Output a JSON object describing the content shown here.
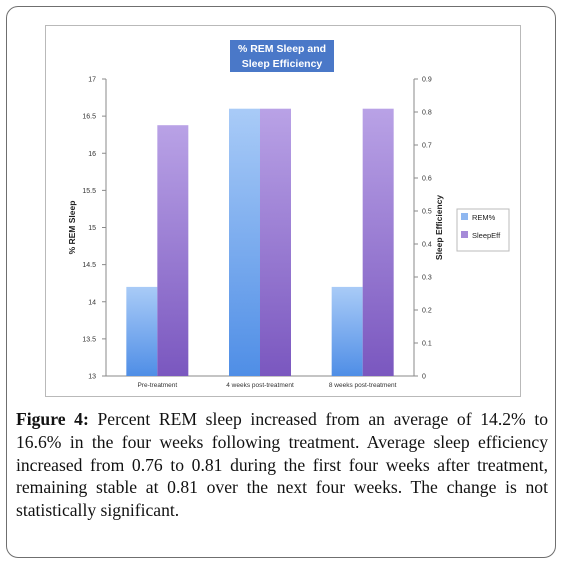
{
  "figure": {
    "caption_label": "Figure 4:",
    "caption_text": " Percent REM sleep increased from an average of 14.2% to 16.6% in the four weeks following treatment. Average sleep efficiency increased from 0.76 to 0.81 during the first four weeks after treatment, remaining stable at 0.81 over the next four weeks. The change is not statistically significant."
  },
  "chart_data": {
    "type": "bar",
    "title_lines": [
      "% REM Sleep and",
      "Sleep Efficiency"
    ],
    "categories": [
      "Pre-treatment",
      "4 weeks post-treatment",
      "8 weeks post-treatment"
    ],
    "series": [
      {
        "name": "REM%",
        "axis": "left",
        "values": [
          14.2,
          16.6,
          14.2
        ],
        "color": "#8fb7f0"
      },
      {
        "name": "SleepEff",
        "axis": "right",
        "values": [
          0.76,
          0.81,
          0.81
        ],
        "color": "#a58ad8"
      }
    ],
    "ylabel_left": "% REM Sleep",
    "ylabel_right": "Sleep Efficiency",
    "ylim_left": [
      13,
      17
    ],
    "ylim_right": [
      0,
      0.9
    ],
    "yticks_left": [
      "13",
      "13.5",
      "14",
      "14.5",
      "15",
      "15.5",
      "16",
      "16.5",
      "17"
    ],
    "yticks_right": [
      "0",
      "0.1",
      "0.2",
      "0.3",
      "0.4",
      "0.5",
      "0.6",
      "0.7",
      "0.8",
      "0.9"
    ],
    "grid": false,
    "legend_position": "right",
    "colors": {
      "title_bg": "#4a78c8",
      "plot_bg": "#ffffff",
      "axis": "#8a8a8a"
    }
  }
}
